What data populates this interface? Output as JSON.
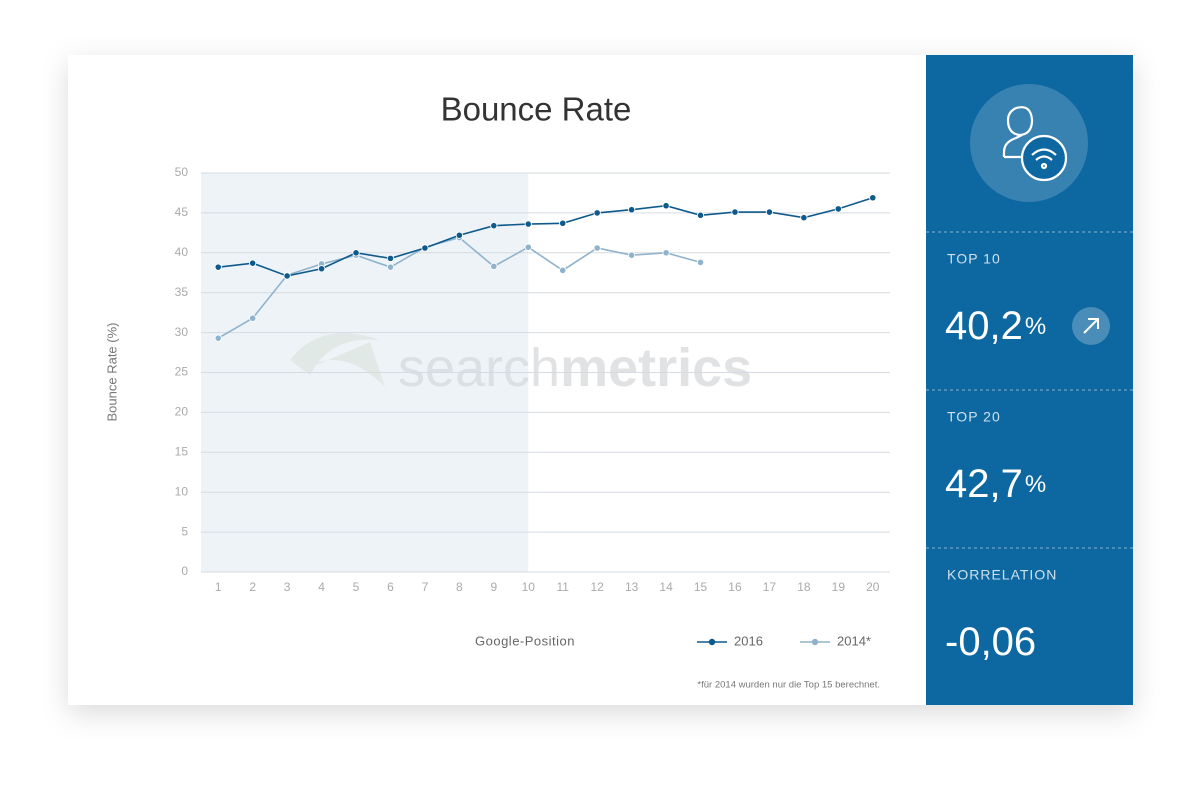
{
  "chart_data": {
    "type": "line",
    "title": "Bounce Rate",
    "x_label": "Google-Position",
    "y_label": "Bounce Rate (%)",
    "x": [
      1,
      2,
      3,
      4,
      5,
      6,
      7,
      8,
      9,
      10,
      11,
      12,
      13,
      14,
      15,
      16,
      17,
      18,
      19,
      20
    ],
    "xlim": [
      0.5,
      20.5
    ],
    "xticks": [
      1,
      2,
      3,
      4,
      5,
      6,
      7,
      8,
      9,
      10,
      11,
      12,
      13,
      14,
      15,
      16,
      17,
      18,
      19,
      20
    ],
    "ylim": [
      0,
      50
    ],
    "yticks": [
      0,
      5,
      10,
      15,
      20,
      25,
      30,
      35,
      40,
      45,
      50
    ],
    "grid": true,
    "highlight_xlim": [
      0.5,
      10
    ],
    "legend": "bottom-right",
    "series": [
      {
        "name": "2016",
        "color": "#0f5a8c",
        "values": [
          38.2,
          38.7,
          37.1,
          38.0,
          40.0,
          39.3,
          40.6,
          42.2,
          43.4,
          43.6,
          43.7,
          45.0,
          45.4,
          45.9,
          44.7,
          45.1,
          45.1,
          44.4,
          45.5,
          46.9
        ]
      },
      {
        "name": "2014*",
        "color": "#8fb3cc",
        "values": [
          29.3,
          31.8,
          37.2,
          38.6,
          39.7,
          38.2,
          40.7,
          41.9,
          38.3,
          40.7,
          37.8,
          40.6,
          39.7,
          40.0,
          38.8,
          null,
          null,
          null,
          null,
          null
        ]
      }
    ],
    "footnote": "*für 2014 wurden nur die Top 15 berechnet.",
    "watermark": [
      "search",
      "metrics"
    ]
  },
  "panel": {
    "stats": [
      {
        "label": "TOP 10",
        "value": "40,2",
        "unit": "%"
      },
      {
        "label": "TOP 20",
        "value": "42,7",
        "unit": "%"
      },
      {
        "label": "KORRELATION",
        "value": "-0,06"
      }
    ]
  }
}
